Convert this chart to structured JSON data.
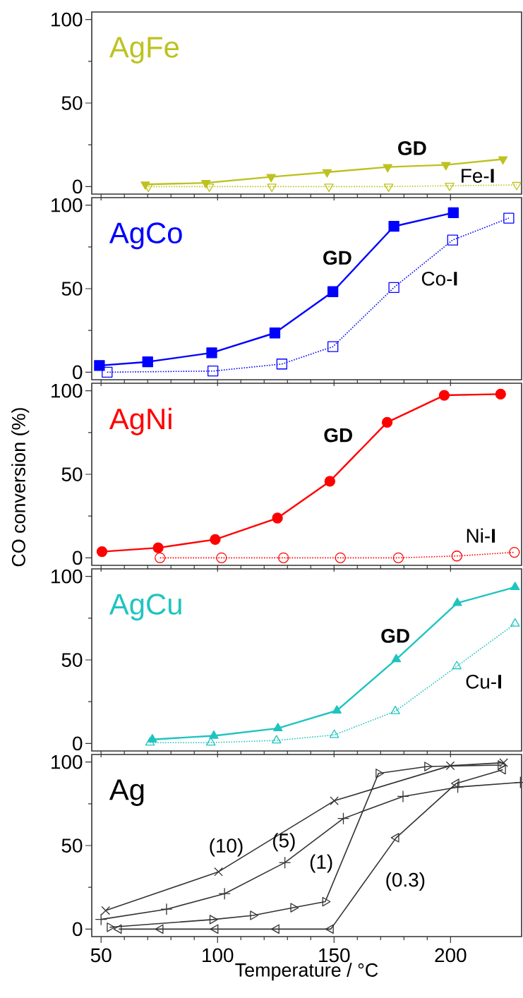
{
  "chart_data": [
    {
      "type": "line",
      "title": "AgFe",
      "color": "#bdc21e",
      "xlim": [
        46,
        230.5
      ],
      "ylim": [
        -4.5,
        104.5
      ],
      "xticks": [
        50,
        100,
        150,
        200
      ],
      "yticks": [
        0,
        50,
        100
      ],
      "tick_labels": "y",
      "series": [
        {
          "name": "GD",
          "color": "#bdc21e",
          "marker": "triangle-down",
          "line_style": "solid",
          "x": [
            69,
            95,
            123,
            147,
            173,
            198,
            222.5
          ],
          "values": [
            1.3,
            2.2,
            5.8,
            8.6,
            11.7,
            13,
            16.4
          ]
        },
        {
          "name": "Fe-**I**",
          "color": "#bdc21e",
          "marker": "triangle-down-open",
          "line_style": "dotted",
          "x": [
            70.3,
            96.5,
            123.3,
            147.8,
            173.4,
            199.6,
            228.4
          ],
          "values": [
            0,
            0,
            0,
            0,
            0,
            0.5,
            1
          ]
        }
      ]
    },
    {
      "type": "line",
      "title": "AgCo",
      "color": "#0000ff",
      "xlim": [
        46,
        230.5
      ],
      "ylim": [
        -4.5,
        104.5
      ],
      "xticks": [
        50,
        100,
        150,
        200
      ],
      "yticks": [
        0,
        50,
        100
      ],
      "tick_labels": "y",
      "series": [
        {
          "name": "GD",
          "color": "#0000ff",
          "marker": "square",
          "line_style": "solid",
          "x": [
            49.3,
            70,
            97.5,
            124.6,
            149.5,
            175.7,
            201.2
          ],
          "values": [
            4,
            6.2,
            11.6,
            23.5,
            48.2,
            87.3,
            95.5
          ]
        },
        {
          "name": "Co-**I**",
          "color": "#0000ff",
          "marker": "square-open",
          "line_style": "dotted",
          "x": [
            52.6,
            98,
            127.6,
            149.5,
            175.7,
            200.9,
            225
          ],
          "values": [
            0,
            0.7,
            4.9,
            15.3,
            50.7,
            79.1,
            92.2
          ]
        }
      ]
    },
    {
      "type": "line",
      "title": "AgNi",
      "color": "#ff0000",
      "ylabel": "CO conversion (%)",
      "xlim": [
        46,
        230.5
      ],
      "ylim": [
        -4.5,
        104.5
      ],
      "xticks": [
        50,
        100,
        150,
        200
      ],
      "yticks": [
        0,
        50,
        100
      ],
      "tick_labels": "y",
      "series": [
        {
          "name": "GD",
          "color": "#ff0000",
          "marker": "circle",
          "line_style": "solid",
          "x": [
            50.4,
            74.5,
            99,
            125.7,
            148.2,
            172.8,
            197.3,
            221.5
          ],
          "values": [
            3.7,
            6,
            11,
            23.8,
            45.8,
            81.1,
            97.3,
            98
          ]
        },
        {
          "name": "Ni-**I**",
          "color": "#ff0000",
          "marker": "circle-open",
          "line_style": "dotted",
          "x": [
            75.3,
            101.7,
            128.3,
            152.7,
            177.6,
            202.7,
            227.4
          ],
          "values": [
            0,
            0,
            0,
            0,
            0,
            1.1,
            3.3
          ]
        }
      ]
    },
    {
      "type": "line",
      "title": "AgCu",
      "color": "#1fc4c0",
      "xlim": [
        46,
        230.5
      ],
      "ylim": [
        -4.5,
        104.5
      ],
      "xticks": [
        50,
        100,
        150,
        200
      ],
      "yticks": [
        0,
        50,
        100
      ],
      "tick_labels": "y",
      "series": [
        {
          "name": "GD",
          "color": "#1fc4c0",
          "marker": "triangle",
          "line_style": "solid",
          "x": [
            72,
            98.4,
            125.9,
            151.2,
            176.7,
            202.9,
            227.7
          ],
          "values": [
            2.4,
            4.6,
            9.1,
            19.7,
            50.4,
            84.1,
            93.6
          ]
        },
        {
          "name": "Cu-**I**",
          "color": "#1fc4c0",
          "marker": "triangle-open",
          "line_style": "dotted",
          "x": [
            71,
            97.1,
            125.3,
            150.1,
            176.3,
            202.7,
            227.7
          ],
          "values": [
            0.5,
            0.5,
            1.8,
            5.1,
            19.3,
            46.2,
            71.7
          ]
        }
      ]
    },
    {
      "type": "line",
      "title": "Ag",
      "color": "#000000",
      "xlabel": "Temperature / °C",
      "xlim": [
        46,
        230.5
      ],
      "ylim": [
        -4.5,
        104.5
      ],
      "xticks": [
        50,
        100,
        150,
        200
      ],
      "yticks": [
        0,
        50,
        100
      ],
      "series": [
        {
          "name": "(10)",
          "color": "#333333",
          "marker": "cross",
          "line_style": "solid",
          "x": [
            52,
            100.4,
            150.1,
            199.9,
            222.8
          ],
          "values": [
            11.1,
            34.3,
            76.8,
            97.8,
            99.6
          ]
        },
        {
          "name": "(5)",
          "color": "#333333",
          "marker": "plus",
          "line_style": "solid",
          "x": [
            50,
            78.1,
            103,
            128.9,
            154,
            179.6,
            203.1,
            230
          ],
          "values": [
            5.8,
            11.9,
            21.2,
            39.8,
            66.2,
            79.4,
            85,
            87.8
          ]
        },
        {
          "name": "(1)",
          "color": "#333333",
          "marker": "triangle-right-open",
          "line_style": "solid",
          "x": [
            53.7,
            97.8,
            115.2,
            132.5,
            146.2,
            169.1,
            190,
            221.5
          ],
          "values": [
            1.1,
            5.7,
            8.2,
            12.8,
            16.4,
            93.2,
            97.3,
            98.2
          ]
        },
        {
          "name": "(0.3)",
          "color": "#333333",
          "marker": "triangle-left-open",
          "line_style": "solid",
          "x": [
            57.6,
            75.5,
            99.1,
            125.3,
            148.6,
            176.7,
            202.5,
            222.5
          ],
          "values": [
            0,
            0,
            0,
            0,
            0,
            54.7,
            87.2,
            95.4
          ]
        }
      ]
    }
  ]
}
